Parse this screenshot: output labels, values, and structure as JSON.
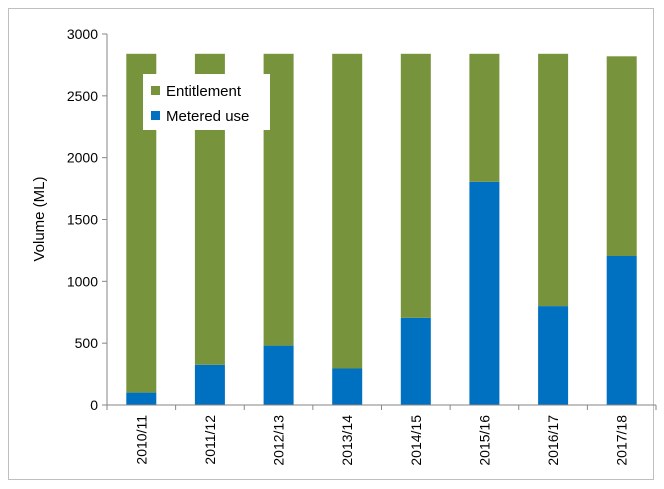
{
  "chart_data": {
    "type": "bar",
    "stacked": true,
    "title": "",
    "xlabel": "",
    "ylabel": "Volume (ML)",
    "ylim": [
      0,
      3000
    ],
    "yticks": [
      0,
      500,
      1000,
      1500,
      2000,
      2500,
      3000
    ],
    "grid": false,
    "legend_position": "top-left",
    "categories": [
      "2010/11",
      "2011/12",
      "2012/13",
      "2013/14",
      "2014/15",
      "2015/16",
      "2016/17",
      "2017/18"
    ],
    "series": [
      {
        "name": "Metered use",
        "color": "#0070C0",
        "values": [
          100,
          325,
          480,
          295,
          705,
          1805,
          800,
          1205
        ]
      },
      {
        "name": "Entitlement",
        "color": "#77933C",
        "values": [
          2740,
          2515,
          2360,
          2545,
          2135,
          1035,
          2040,
          1615
        ]
      }
    ],
    "totals": [
      2840,
      2840,
      2840,
      2840,
      2840,
      2840,
      2840,
      2820
    ]
  }
}
